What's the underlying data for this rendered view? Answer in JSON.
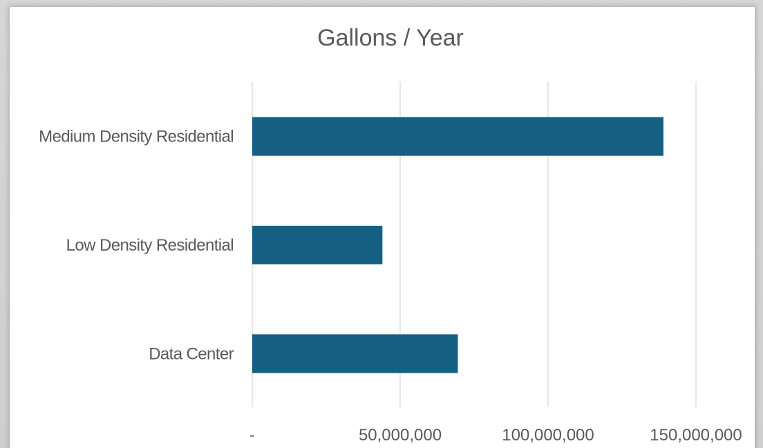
{
  "chart_data": {
    "type": "bar",
    "orientation": "horizontal",
    "title": "Gallons / Year",
    "categories": [
      "Medium Density Residential",
      "Low Density Residential",
      "Data Center"
    ],
    "values": [
      139000000,
      44000000,
      69500000
    ],
    "xlabel": "",
    "ylabel": "",
    "xlim": [
      0,
      150000000
    ],
    "ticks": [
      {
        "value": 0,
        "label": "-"
      },
      {
        "value": 50000000,
        "label": "50,000,000"
      },
      {
        "value": 100000000,
        "label": "100,000,000"
      },
      {
        "value": 150000000,
        "label": "150,000,000"
      }
    ],
    "bar_color": "#156082",
    "grid": true,
    "legend": "none"
  }
}
